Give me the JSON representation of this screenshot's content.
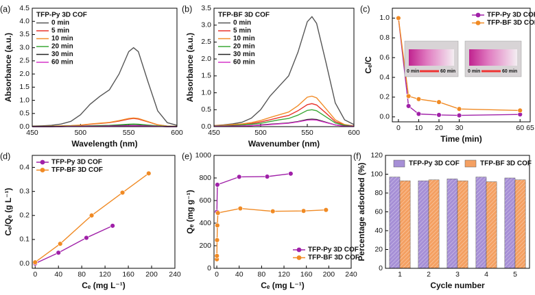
{
  "chart_data": [
    {
      "type": "line",
      "label": "(a)",
      "legend_title": "TFP-Py 3D COF",
      "legend": "upper left",
      "xlabel": "Wavelength (nm)",
      "ylabel": "Absorbance (a.u.)",
      "x": [
        450,
        460,
        470,
        480,
        490,
        500,
        510,
        520,
        530,
        540,
        550,
        555,
        560,
        570,
        580,
        590,
        600
      ],
      "series": [
        {
          "name": "0 min",
          "color": "#555555",
          "values": [
            0.02,
            0.03,
            0.05,
            0.1,
            0.2,
            0.45,
            0.85,
            1.15,
            1.4,
            2.0,
            2.85,
            3.0,
            2.85,
            1.7,
            0.6,
            0.15,
            0.05
          ]
        },
        {
          "name": "5 min",
          "color": "#e8322b",
          "values": [
            0.01,
            0.01,
            0.02,
            0.02,
            0.03,
            0.05,
            0.09,
            0.12,
            0.15,
            0.21,
            0.29,
            0.31,
            0.29,
            0.18,
            0.07,
            0.02,
            0.01
          ]
        },
        {
          "name": "10 min",
          "color": "#f28c28",
          "values": [
            0.01,
            0.01,
            0.02,
            0.03,
            0.04,
            0.06,
            0.1,
            0.13,
            0.16,
            0.23,
            0.31,
            0.33,
            0.31,
            0.19,
            0.07,
            0.02,
            0.01
          ]
        },
        {
          "name": "20 min",
          "color": "#3aa835",
          "values": [
            0.01,
            0.01,
            0.01,
            0.01,
            0.02,
            0.02,
            0.03,
            0.04,
            0.05,
            0.07,
            0.09,
            0.1,
            0.09,
            0.06,
            0.03,
            0.01,
            0.01
          ]
        },
        {
          "name": "30 min",
          "color": "#222222",
          "values": [
            0.0,
            0.0,
            0.0,
            0.01,
            0.01,
            0.01,
            0.02,
            0.02,
            0.03,
            0.04,
            0.05,
            0.05,
            0.05,
            0.03,
            0.01,
            0.0,
            0.0
          ]
        },
        {
          "name": "60 min",
          "color": "#d633c9",
          "values": [
            0.0,
            0.0,
            0.0,
            0.0,
            0.01,
            0.01,
            0.01,
            0.01,
            0.02,
            0.02,
            0.03,
            0.03,
            0.03,
            0.02,
            0.01,
            0.0,
            0.0
          ]
        }
      ],
      "xlim": [
        450,
        600
      ],
      "xticks": [
        450,
        500,
        550,
        600
      ],
      "ylim": [
        0,
        4.5
      ],
      "yticks": [
        {
          "value": 0,
          "label": "0.0"
        },
        0.5,
        {
          "value": 1,
          "label": "1.0"
        },
        1.5,
        {
          "value": 2,
          "label": "2.0"
        },
        2.5,
        {
          "value": 3,
          "label": "3.0"
        },
        3.5,
        {
          "value": 4,
          "label": "4.0"
        },
        4.5
      ]
    },
    {
      "type": "line",
      "label": "(b)",
      "legend_title": "TFP-BF 3D COF",
      "legend": "upper left",
      "xlabel": "Wavenumber (nm)",
      "ylabel": "Absorbance (a.u.)",
      "x": [
        450,
        460,
        470,
        480,
        490,
        500,
        510,
        520,
        530,
        540,
        550,
        555,
        560,
        570,
        580,
        590,
        600
      ],
      "series": [
        {
          "name": "0 min",
          "color": "#555555",
          "values": [
            0.03,
            0.05,
            0.08,
            0.13,
            0.25,
            0.5,
            0.9,
            1.2,
            1.5,
            2.2,
            3.1,
            3.25,
            3.05,
            1.9,
            0.7,
            0.2,
            0.06
          ]
        },
        {
          "name": "5 min",
          "color": "#e8322b",
          "values": [
            0.02,
            0.03,
            0.04,
            0.06,
            0.09,
            0.14,
            0.2,
            0.27,
            0.33,
            0.47,
            0.65,
            0.68,
            0.64,
            0.4,
            0.15,
            0.05,
            0.02
          ]
        },
        {
          "name": "10 min",
          "color": "#f28c28",
          "values": [
            0.03,
            0.04,
            0.06,
            0.08,
            0.12,
            0.18,
            0.27,
            0.35,
            0.43,
            0.62,
            0.87,
            0.9,
            0.85,
            0.53,
            0.2,
            0.06,
            0.02
          ]
        },
        {
          "name": "20 min",
          "color": "#3aa835",
          "values": [
            0.02,
            0.02,
            0.03,
            0.05,
            0.07,
            0.1,
            0.15,
            0.2,
            0.24,
            0.34,
            0.48,
            0.5,
            0.47,
            0.29,
            0.11,
            0.04,
            0.01
          ]
        },
        {
          "name": "30 min",
          "color": "#222222",
          "values": [
            0.01,
            0.01,
            0.02,
            0.02,
            0.03,
            0.05,
            0.07,
            0.09,
            0.11,
            0.15,
            0.21,
            0.22,
            0.21,
            0.13,
            0.05,
            0.02,
            0.01
          ]
        },
        {
          "name": "60 min",
          "color": "#d633c9",
          "values": [
            0.01,
            0.01,
            0.01,
            0.02,
            0.03,
            0.04,
            0.06,
            0.08,
            0.1,
            0.14,
            0.19,
            0.2,
            0.19,
            0.12,
            0.05,
            0.01,
            0.01
          ]
        }
      ],
      "xlim": [
        450,
        600
      ],
      "xticks": [
        450,
        500,
        550,
        600
      ],
      "ylim": [
        0,
        3.5
      ],
      "yticks": [
        {
          "value": 0,
          "label": "0.0"
        },
        0.5,
        {
          "value": 1,
          "label": "1.0"
        },
        1.5,
        {
          "value": 2,
          "label": "2.0"
        },
        2.5,
        {
          "value": 3,
          "label": "3.0"
        },
        3.5
      ]
    },
    {
      "type": "line",
      "label": "(c)",
      "legend": "upper right",
      "markers": true,
      "xlabel": "Time (min)",
      "ylabel": "Cₑ/C",
      "x": [
        0,
        5,
        10,
        20,
        30,
        60
      ],
      "series": [
        {
          "name": "TFP-Py 3D COF",
          "color": "#a020a8",
          "values": [
            1.0,
            0.11,
            0.03,
            0.02,
            0.015,
            0.025
          ]
        },
        {
          "name": "TFP-BF 3D COF",
          "color": "#f08a24",
          "values": [
            1.0,
            0.21,
            0.18,
            0.15,
            0.08,
            0.065
          ]
        }
      ],
      "inset_labels": [
        "0 min",
        "60 min",
        "0 min",
        "60 min"
      ],
      "xlim": [
        -3,
        65
      ],
      "xticks": [
        0,
        10,
        20,
        30,
        60,
        65
      ],
      "ylim": [
        -0.05,
        1.1
      ],
      "yticks": [
        {
          "value": 0,
          "label": "0.0"
        },
        0.2,
        0.4,
        0.6,
        0.8,
        {
          "value": 1,
          "label": "1.0"
        }
      ]
    },
    {
      "type": "scatter",
      "label": "(d)",
      "legend": "upper left",
      "lines": true,
      "xlabel": "Cₑ (mg L⁻¹)",
      "ylabel": "Cₑ/Qₑ (g L⁻¹)",
      "series": [
        {
          "name": "TFP-Py 3D COF",
          "color": "#a020a8",
          "x": [
            0,
            40,
            88,
            133
          ],
          "values": [
            0.0,
            0.045,
            0.107,
            0.157
          ]
        },
        {
          "name": "TFP-BF 3D COF",
          "color": "#f08a24",
          "x": [
            0,
            43,
            97,
            150,
            195
          ],
          "values": [
            0.005,
            0.082,
            0.2,
            0.295,
            0.375
          ]
        }
      ],
      "xlim": [
        -5,
        240
      ],
      "xticks": [
        0,
        40,
        80,
        120,
        160,
        200,
        240
      ],
      "ylim": [
        -0.02,
        0.45
      ],
      "yticks": [
        {
          "value": 0,
          "label": "0.0"
        },
        0.1,
        0.2,
        0.3,
        0.4
      ]
    },
    {
      "type": "scatter",
      "label": "(e)",
      "legend": "lower right",
      "lines": true,
      "xlabel": "Cₑ (mg L⁻¹)",
      "ylabel": "Qₑ (mg g⁻¹)",
      "series": [
        {
          "name": "TFP-Py 3D COF",
          "color": "#a020a8",
          "x": [
            0.2,
            1,
            40,
            90,
            132
          ],
          "values": [
            500,
            740,
            810,
            812,
            838
          ]
        },
        {
          "name": "TFP-BF 3D COF",
          "color": "#f08a24",
          "x": [
            0.1,
            0.2,
            0.5,
            1,
            2,
            42,
            100,
            155,
            195
          ],
          "values": [
            80,
            110,
            250,
            380,
            490,
            530,
            505,
            508,
            517
          ]
        }
      ],
      "xlim": [
        -5,
        240
      ],
      "xticks": [
        0,
        40,
        80,
        120,
        160,
        200,
        240
      ],
      "ylim": [
        0,
        1000
      ],
      "yticks": [
        0,
        200,
        400,
        600,
        800,
        1000
      ]
    },
    {
      "type": "bar",
      "label": "(f)",
      "legend": "upper center",
      "xlabel": "Cycle number",
      "ylabel": "Percentage adsorbed (%)",
      "categories": [
        "1",
        "2",
        "3",
        "4",
        "5"
      ],
      "series": [
        {
          "name": "TFP-Py 3D COF",
          "color": "#a68fd6",
          "values": [
            97,
            93,
            95,
            97,
            96
          ]
        },
        {
          "name": "TFP-BF 3D COF",
          "color": "#f4a062",
          "values": [
            93,
            94,
            93,
            92,
            94
          ]
        }
      ],
      "ylim": [
        0,
        120
      ],
      "yticks": [
        0,
        20,
        40,
        60,
        80,
        100,
        120
      ]
    }
  ]
}
